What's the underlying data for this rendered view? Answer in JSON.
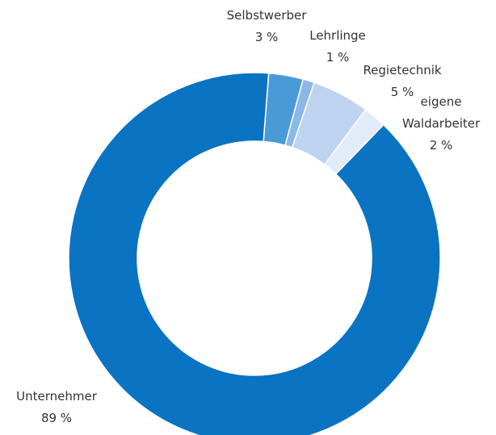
{
  "chart_data": {
    "type": "donut",
    "categories": [
      "Selbstwerber",
      "Lehrlinge",
      "Regietechnik",
      "eigene Waldarbeiter",
      "Unternehmer"
    ],
    "values": [
      3,
      1,
      5,
      2,
      89
    ],
    "value_labels": [
      "3 %",
      "1 %",
      "5 %",
      "2 %",
      "89 %"
    ],
    "colors": [
      "#4a9ad8",
      "#8db8e5",
      "#bdd3ef",
      "#e2ecf8",
      "#0a73c2"
    ]
  }
}
